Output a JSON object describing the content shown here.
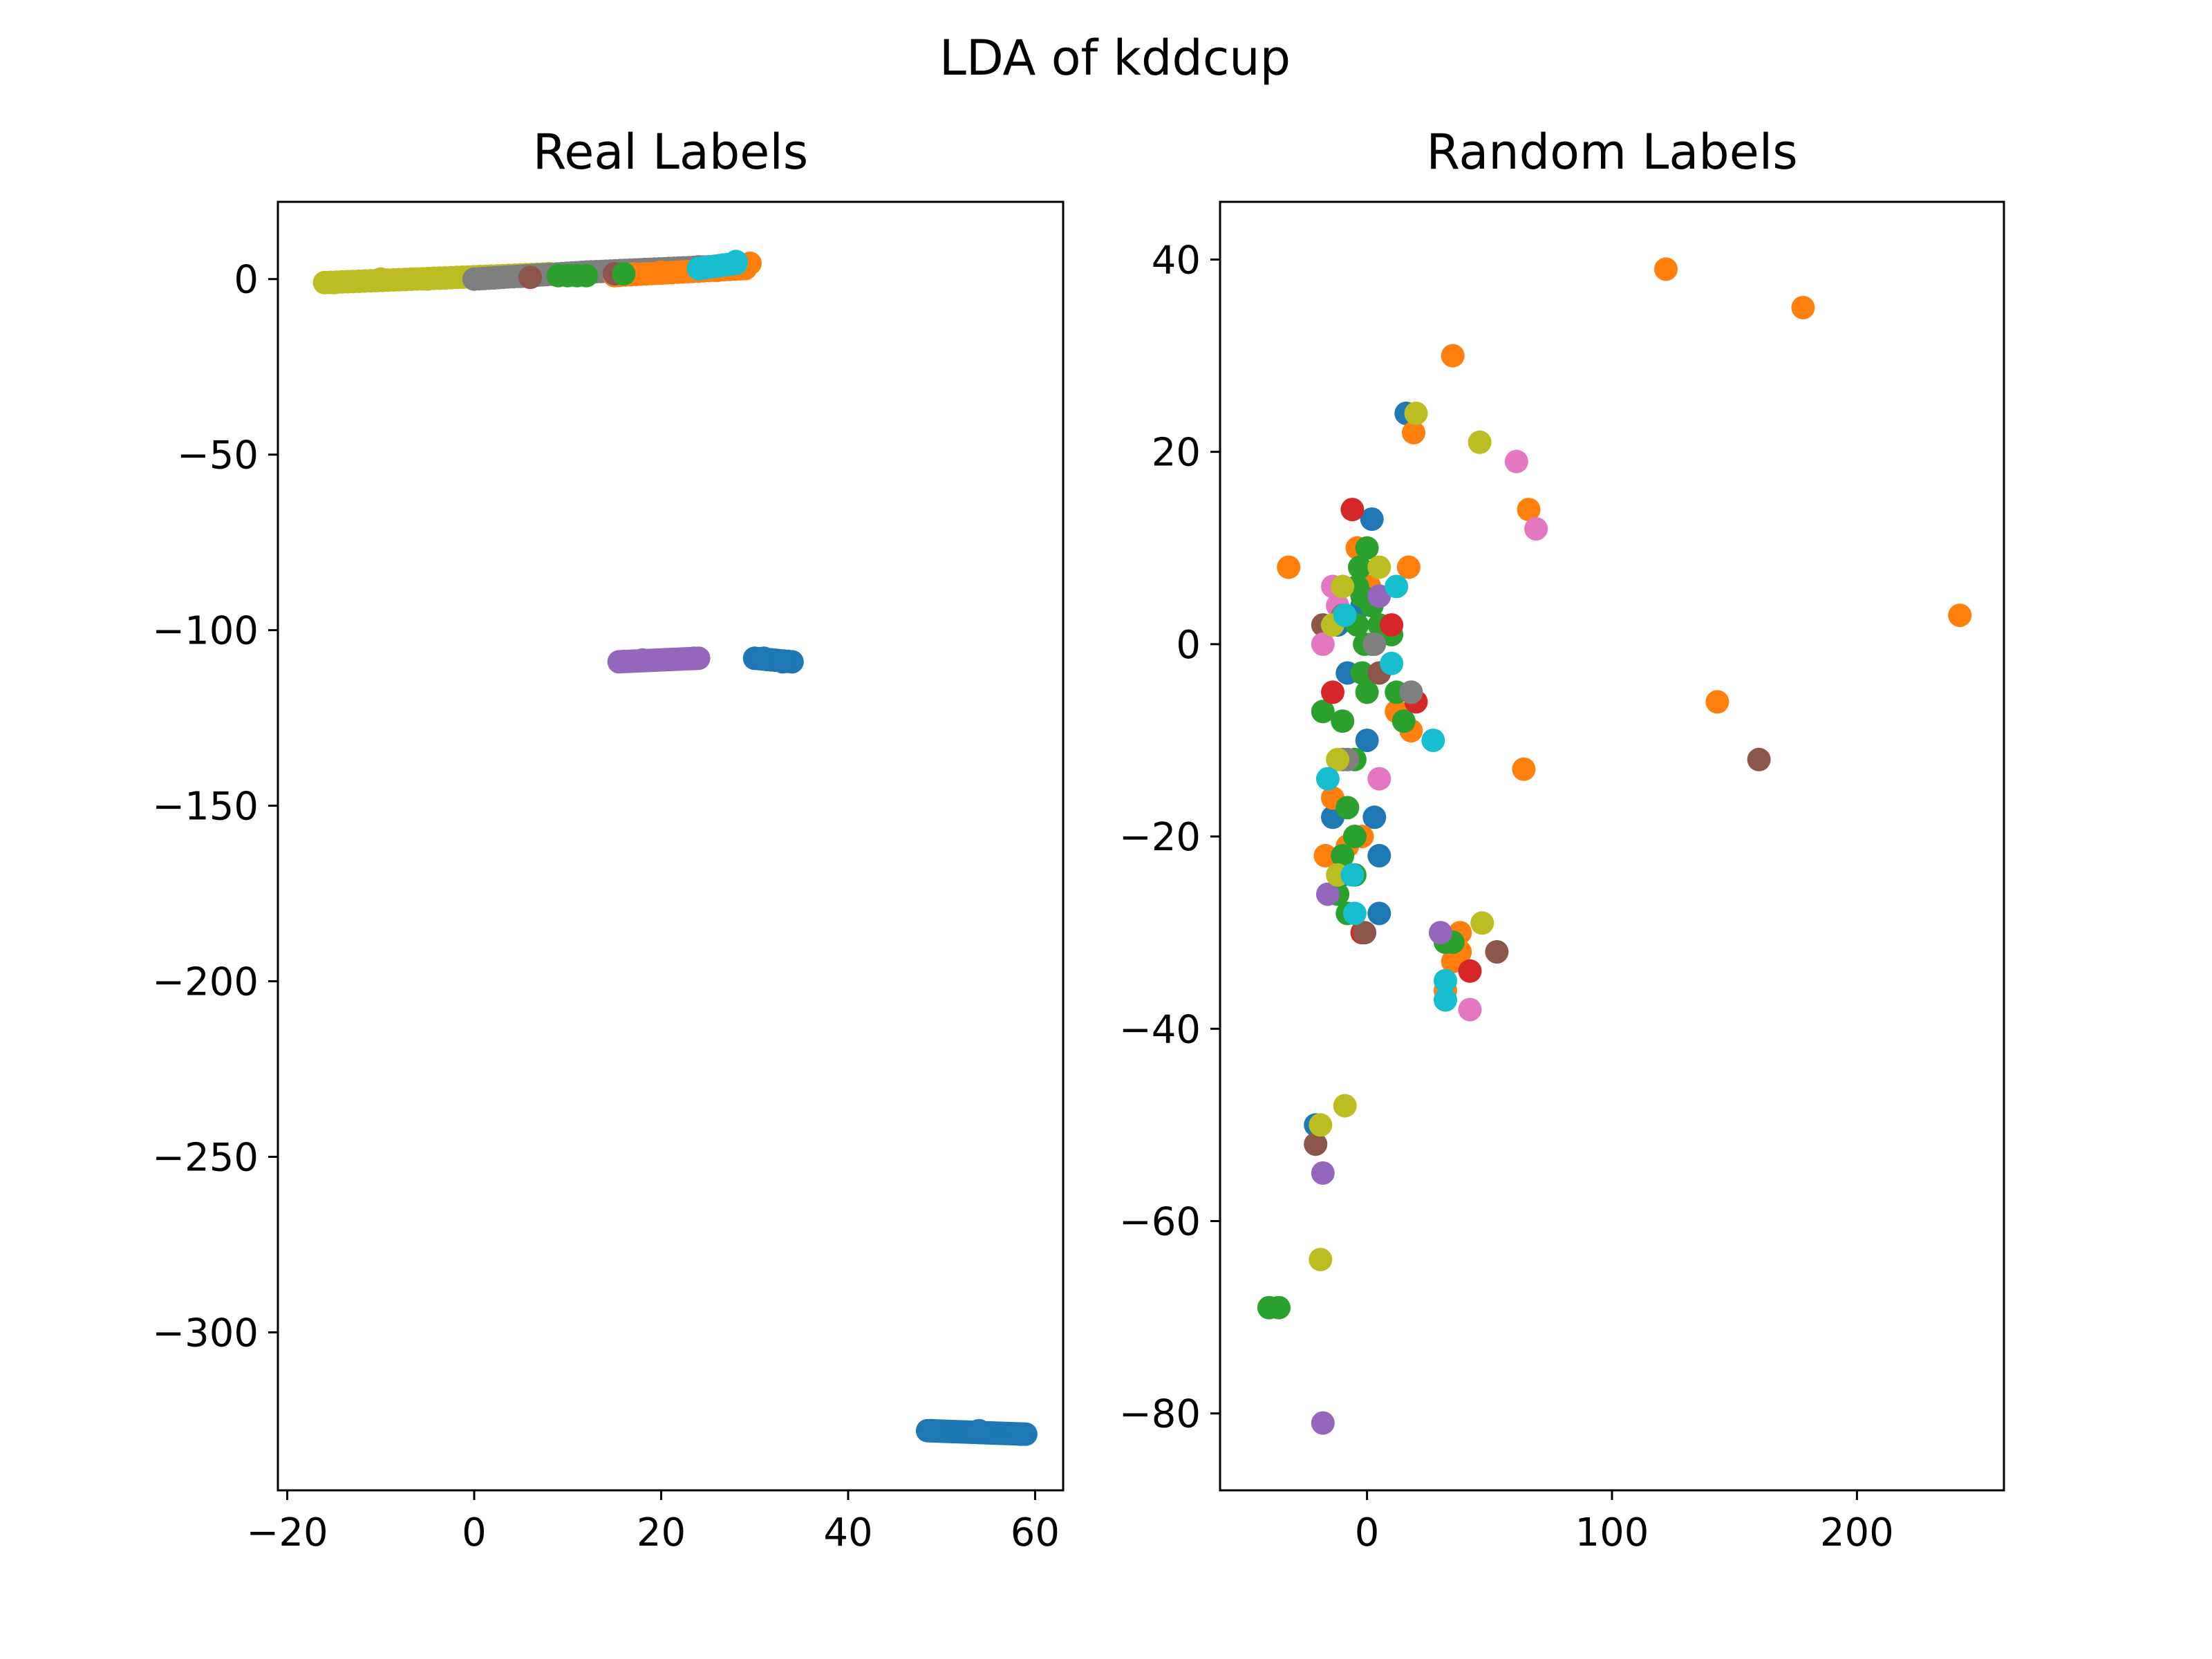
{
  "figure": {
    "title": "LDA of kddcup"
  },
  "chart_data": [
    {
      "type": "scatter",
      "title": "Real Labels",
      "xlim": [
        -21,
        63
      ],
      "ylim": [
        -345,
        22
      ],
      "xticks": [
        -20,
        0,
        20,
        40,
        60
      ],
      "yticks": [
        0,
        -50,
        -100,
        -150,
        -200,
        -250,
        -300
      ],
      "xtick_labels": [
        "−20",
        "0",
        "20",
        "40",
        "60"
      ],
      "ytick_labels": [
        "0",
        "−50",
        "−100",
        "−150",
        "−200",
        "−250",
        "−300"
      ],
      "grid": false,
      "series": [
        {
          "color": "#bcbd22",
          "segments": [
            [
              -16,
              -1,
              8,
              1.5,
              40
            ]
          ],
          "points": [
            [
              -15,
              -1
            ],
            [
              -10,
              0
            ],
            [
              -5,
              0
            ],
            [
              0,
              0.5
            ],
            [
              5,
              1
            ],
            [
              8,
              1.5
            ]
          ]
        },
        {
          "color": "#7f7f7f",
          "segments": [
            [
              0,
              0,
              12,
              2,
              24
            ],
            [
              12,
              2,
              25,
              3.5,
              26
            ]
          ],
          "points": [
            [
              5,
              0.8
            ],
            [
              10,
              1.5
            ],
            [
              18,
              2.5
            ],
            [
              24,
              3.5
            ]
          ]
        },
        {
          "color": "#ff7f0e",
          "segments": [
            [
              15,
              1,
              29,
              3,
              26
            ]
          ],
          "points": [
            [
              17,
              1.5
            ],
            [
              20,
              2
            ],
            [
              24,
              2.5
            ],
            [
              26,
              2.5
            ],
            [
              29.5,
              4.5
            ]
          ]
        },
        {
          "color": "#17becf",
          "segments": [
            [
              24,
              3,
              28,
              4.5,
              10
            ]
          ],
          "points": [
            [
              28,
              5
            ]
          ]
        },
        {
          "color": "#8c564b",
          "segments": [],
          "points": [
            [
              6,
              0.5
            ],
            [
              15,
              1.5
            ]
          ]
        },
        {
          "color": "#2ca02c",
          "segments": [],
          "points": [
            [
              9,
              1
            ],
            [
              10,
              1
            ],
            [
              11,
              1
            ],
            [
              12,
              1
            ],
            [
              16,
              1.5
            ]
          ]
        },
        {
          "color": "#9467bd",
          "segments": [
            [
              15.5,
              -109,
              24,
              -108,
              26
            ]
          ],
          "points": [
            [
              18,
              -108.5
            ],
            [
              23.5,
              -108
            ]
          ]
        },
        {
          "color": "#1f77b4",
          "segments": [
            [
              30,
              -108,
              34,
              -109,
              10
            ],
            [
              48.5,
              -328,
              59,
              -329,
              50
            ]
          ],
          "points": [
            [
              31,
              -108
            ],
            [
              33,
              -109
            ],
            [
              49,
              -328
            ],
            [
              54,
              -328
            ],
            [
              58.5,
              -329
            ]
          ]
        }
      ]
    },
    {
      "type": "scatter",
      "title": "Random Labels",
      "xlim": [
        -60,
        260
      ],
      "ylim": [
        -88,
        46
      ],
      "xticks": [
        0,
        100,
        200
      ],
      "yticks": [
        40,
        20,
        0,
        -20,
        -40,
        -60,
        -80
      ],
      "xtick_labels": [
        "0",
        "100",
        "200"
      ],
      "ytick_labels": [
        "40",
        "20",
        "0",
        "−20",
        "−40",
        "−60",
        "−80"
      ],
      "grid": false,
      "series": [
        {
          "color": "#1f77b4",
          "points": [
            [
              16,
              24
            ],
            [
              2,
              13
            ],
            [
              -2,
              4
            ],
            [
              -8,
              -3
            ],
            [
              -14,
              -18
            ],
            [
              -10,
              -24
            ],
            [
              5,
              -22
            ],
            [
              0,
              -10
            ],
            [
              -5,
              -20
            ],
            [
              5,
              -28
            ],
            [
              -21,
              -50
            ],
            [
              3,
              -18
            ],
            [
              -12,
              2
            ]
          ]
        },
        {
          "color": "#ff7f0e",
          "points": [
            [
              122,
              39
            ],
            [
              178,
              35
            ],
            [
              35,
              30
            ],
            [
              19,
              22
            ],
            [
              17,
              8
            ],
            [
              -32,
              8
            ],
            [
              66,
              14
            ],
            [
              64,
              -13
            ],
            [
              143,
              -6
            ],
            [
              242,
              3
            ],
            [
              12,
              -7
            ],
            [
              18,
              -9
            ],
            [
              -14,
              -16
            ],
            [
              -17,
              -22
            ],
            [
              -8,
              -21
            ],
            [
              -2,
              -20
            ],
            [
              32,
              -36
            ],
            [
              38,
              -32
            ],
            [
              38,
              -30
            ],
            [
              35,
              -33
            ],
            [
              1,
              6
            ],
            [
              -4,
              10
            ]
          ]
        },
        {
          "color": "#2ca02c",
          "points": [
            [
              0,
              10
            ],
            [
              -3,
              8
            ],
            [
              -2,
              5
            ],
            [
              -4,
              2
            ],
            [
              -1,
              0
            ],
            [
              -2,
              -3
            ],
            [
              0,
              -5
            ],
            [
              2,
              0
            ],
            [
              5,
              2
            ],
            [
              10,
              1
            ],
            [
              12,
              -5
            ],
            [
              15,
              -8
            ],
            [
              -18,
              -7
            ],
            [
              -10,
              -8
            ],
            [
              -5,
              -12
            ],
            [
              -8,
              -17
            ],
            [
              -5,
              -20
            ],
            [
              -10,
              -22
            ],
            [
              -12,
              -26
            ],
            [
              -8,
              -28
            ],
            [
              -5,
              -24
            ],
            [
              -40,
              -69
            ],
            [
              -36,
              -69
            ],
            [
              32,
              -31
            ],
            [
              35,
              -31
            ],
            [
              -4,
              6
            ],
            [
              2,
              4
            ]
          ]
        },
        {
          "color": "#d62728",
          "points": [
            [
              -6,
              14
            ],
            [
              20,
              -6
            ],
            [
              42,
              -34
            ],
            [
              -2,
              -30
            ],
            [
              10,
              2
            ],
            [
              -14,
              -5
            ]
          ]
        },
        {
          "color": "#9467bd",
          "points": [
            [
              -18,
              -55
            ],
            [
              -18,
              -81
            ],
            [
              30,
              -30
            ],
            [
              -16,
              -26
            ],
            [
              5,
              5
            ],
            [
              -10,
              -12
            ]
          ]
        },
        {
          "color": "#8c564b",
          "points": [
            [
              160,
              -12
            ],
            [
              53,
              -32
            ],
            [
              -21,
              -52
            ],
            [
              -18,
              2
            ],
            [
              -1,
              -30
            ],
            [
              18,
              -5
            ],
            [
              5,
              -3
            ]
          ]
        },
        {
          "color": "#e377c2",
          "points": [
            [
              61,
              19
            ],
            [
              69,
              12
            ],
            [
              -14,
              6
            ],
            [
              -18,
              0
            ],
            [
              42,
              -38
            ],
            [
              5,
              -14
            ],
            [
              -12,
              4
            ]
          ]
        },
        {
          "color": "#7f7f7f",
          "points": [
            [
              -8,
              -12
            ],
            [
              18,
              -5
            ],
            [
              -10,
              3
            ],
            [
              3,
              0
            ]
          ]
        },
        {
          "color": "#bcbd22",
          "points": [
            [
              20,
              24
            ],
            [
              46,
              21
            ],
            [
              -9,
              -48
            ],
            [
              -19,
              -50
            ],
            [
              -19,
              -64
            ],
            [
              47,
              -29
            ],
            [
              -14,
              2
            ],
            [
              -12,
              -12
            ],
            [
              -10,
              6
            ],
            [
              5,
              8
            ],
            [
              -12,
              -24
            ]
          ]
        },
        {
          "color": "#17becf",
          "points": [
            [
              27,
              -10
            ],
            [
              -16,
              -14
            ],
            [
              12,
              6
            ],
            [
              -5,
              -28
            ],
            [
              32,
              -35
            ],
            [
              32,
              -37
            ],
            [
              -6,
              -24
            ],
            [
              10,
              -2
            ],
            [
              -9,
              3
            ]
          ]
        }
      ]
    }
  ]
}
